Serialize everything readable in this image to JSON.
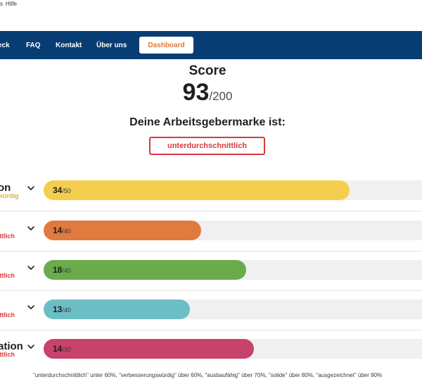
{
  "menubar": {
    "items": [
      "s",
      "Hilfe"
    ]
  },
  "nav": {
    "links": [
      "eck",
      "FAQ",
      "Kontakt",
      "Über uns"
    ],
    "dashboard_label": "Dashboard"
  },
  "score": {
    "label": "Score",
    "value": "93",
    "max": "/200",
    "heading": "Deine Arbeitsgebermarke ist:",
    "verdict": "unterdurchschnittlich"
  },
  "colors": {
    "yellow": "#f4cf4e",
    "orange": "#e07a3f",
    "green": "#6aab4b",
    "teal": "#6cbec5",
    "pink": "#c9426b",
    "red": "#d9393f",
    "navy": "#073d73"
  },
  "categories": [
    {
      "name": "on",
      "sub": "würdig",
      "sub_color": "#e2b33a",
      "score": "34",
      "max": "/50",
      "fraction": 0.68,
      "color": "#f4cf4e"
    },
    {
      "name": "",
      "sub": "ittlich",
      "sub_color": "#d9393f",
      "score": "14",
      "max": "/40",
      "fraction": 0.35,
      "color": "#e07a3f"
    },
    {
      "name": "",
      "sub": "ittlich",
      "sub_color": "#d9393f",
      "score": "18",
      "max": "/40",
      "fraction": 0.45,
      "color": "#6aab4b"
    },
    {
      "name": "",
      "sub": "ittlich",
      "sub_color": "#d9393f",
      "score": "13",
      "max": "/40",
      "fraction": 0.325,
      "color": "#6cbec5"
    },
    {
      "name": "ation",
      "sub": "ittlich",
      "sub_color": "#d9393f",
      "score": "14",
      "max": "/30",
      "fraction": 0.467,
      "color": "#c9426b"
    }
  ],
  "legend_note": "\"unterdurchschnittlich\" unter 60%, \"verbesserungswürdig\" über 60%, \"ausbaufähig\" über 70%, \"solide\" über 80%, \"ausgezeichnet\" über 90%"
}
